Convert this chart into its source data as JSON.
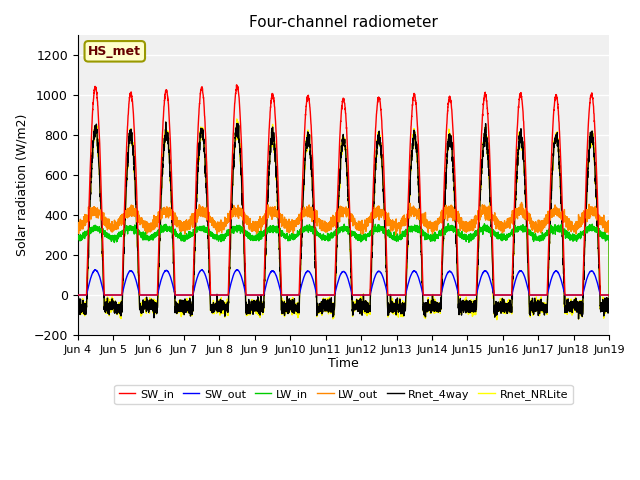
{
  "title": "Four-channel radiometer",
  "xlabel": "Time",
  "ylabel": "Solar radiation (W/m2)",
  "ylim": [
    -200,
    1300
  ],
  "yticks": [
    -200,
    0,
    200,
    400,
    600,
    800,
    1000,
    1200
  ],
  "start_day": 4,
  "end_day": 19,
  "n_days": 15,
  "pts_per_day": 288,
  "colors": {
    "SW_in": "#ff0000",
    "SW_out": "#0000ff",
    "LW_in": "#00cc00",
    "LW_out": "#ff8800",
    "Rnet_4way": "#000000",
    "Rnet_NRLite": "#ffff00"
  },
  "label_box": {
    "text": "HS_met",
    "facecolor": "#ffffcc",
    "edgecolor": "#999900"
  },
  "bg_color": "#f0f0f0",
  "grid_color": "#ffffff",
  "SW_in_peaks": [
    1040,
    1010,
    1025,
    1035,
    1045,
    1005,
    995,
    980,
    990,
    1000,
    990,
    1005,
    1005,
    1000,
    1005
  ],
  "LW_in_base": 310,
  "LW_in_amp": 25,
  "LW_out_base": 380,
  "LW_out_amp": 40
}
